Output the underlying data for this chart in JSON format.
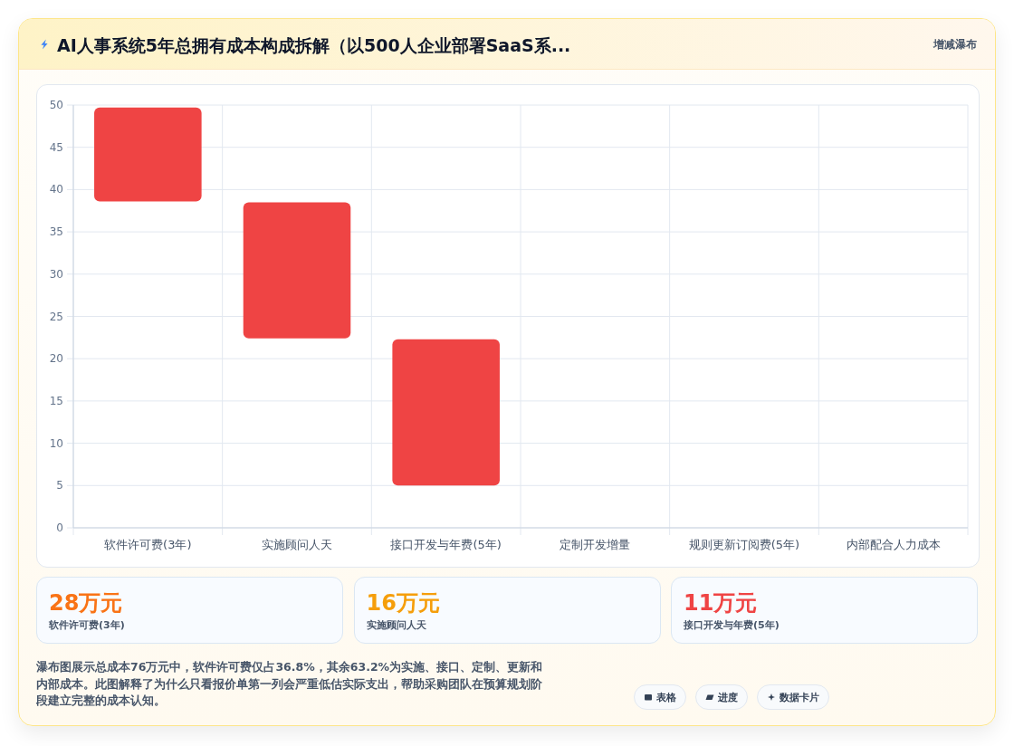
{
  "chart_data": [
    {
      "type": "bar",
      "title": "AI人事系统5年总拥有成本构成拆解（以500人企业部署SaaS系...",
      "annotations": [
        "增减瀑布",
        "瀑布图展示总成本76万元中，软件许可费仅占36.8%，其余63.2%为实施、接口、定制、更新和内部成本。此图解释了为什么只看报价单第一列会严重低估实际支出，帮助采购团队在预算规划阶段建立完整的成本认知。",
        "表格",
        "进度",
        "数据卡片"
      ],
      "categories": [
        "软件许可费(3年)",
        "实施顾问人天",
        "接口开发与年费(5年)",
        "定制开发增量",
        "规则更新订阅费(5年)",
        "内部配合人力成本"
      ],
      "values": [
        11.1,
        16.1,
        17.3,
        null,
        null,
        null
      ],
      "base": [
        38.6,
        22.4,
        5,
        null,
        null,
        null
      ],
      "color": "#ef4444",
      "ylim": [
        0,
        50
      ],
      "yticks": [
        0,
        5,
        10,
        15,
        20,
        25,
        30,
        35,
        40,
        45,
        50
      ],
      "grid": true
    },
    {
      "type": "other",
      "annotations": [
        "28万元",
        "软件许可费(3年)",
        "16万元",
        "实施顾问人天",
        "11万元",
        "接口开发与年费(5年)"
      ],
      "colors": [
        "#f97316",
        "#f59e0b",
        "#ef4444"
      ]
    }
  ]
}
